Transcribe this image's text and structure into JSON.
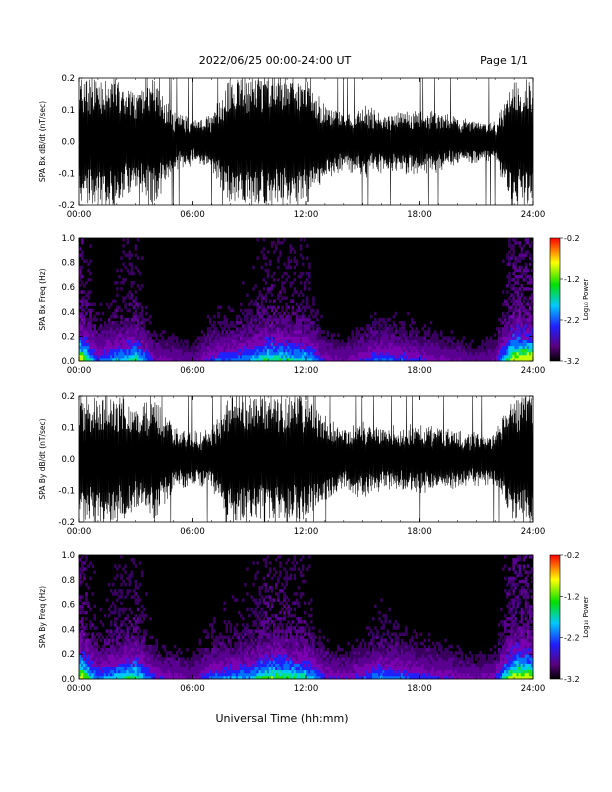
{
  "header": {
    "title": "2022/06/25  00:00-24:00 UT",
    "page": "Page 1/1"
  },
  "footer": {
    "xlabel": "Universal Time (hh:mm)"
  },
  "colors": {
    "trace": "#000000",
    "background": "#ffffff",
    "spectrogram_background": "#000000"
  },
  "chart_data": [
    {
      "type": "line",
      "ylabel": "SPA Bx dB/dt (nT/sec)",
      "xlim": [
        0,
        24
      ],
      "ylim": [
        -0.2,
        0.2
      ],
      "x_ticks": [
        "00:00",
        "06:00",
        "12:00",
        "18:00",
        "24:00"
      ],
      "y_ticks": [
        "-0.2",
        "-0.1",
        "0.0",
        "0.1",
        "0.2"
      ],
      "envelope": {
        "x": [
          0,
          1,
          2,
          3,
          4,
          5,
          6,
          7,
          8,
          9,
          10,
          11,
          12,
          13,
          14,
          15,
          16,
          17,
          18,
          19,
          20,
          21,
          22,
          23,
          24
        ],
        "amplitude": [
          0.2,
          0.2,
          0.2,
          0.15,
          0.2,
          0.09,
          0.07,
          0.08,
          0.2,
          0.2,
          0.2,
          0.2,
          0.2,
          0.12,
          0.09,
          0.11,
          0.09,
          0.1,
          0.1,
          0.09,
          0.07,
          0.07,
          0.06,
          0.2,
          0.2
        ]
      }
    },
    {
      "type": "heatmap",
      "ylabel": "SPA Bx Freq (Hz)",
      "xlim": [
        0,
        24
      ],
      "ylim": [
        0.0,
        1.0
      ],
      "x_ticks": [
        "00:00",
        "06:00",
        "12:00",
        "18:00",
        "24:00"
      ],
      "y_ticks": [
        "0.0",
        "0.2",
        "0.4",
        "0.6",
        "0.8",
        "1.0"
      ],
      "colorbar": {
        "label": "Log₁₀ Power",
        "range": [
          -3.2,
          -0.2
        ],
        "ticks": [
          "-0.2",
          "-1.2",
          "-2.2",
          "-3.2"
        ]
      },
      "activity": {
        "x": [
          0,
          1,
          2,
          3,
          4,
          5,
          6,
          7,
          8,
          9,
          10,
          11,
          12,
          13,
          14,
          15,
          16,
          17,
          18,
          19,
          20,
          21,
          22,
          23,
          24
        ],
        "level": [
          0.9,
          0.4,
          0.55,
          0.65,
          0.3,
          0.25,
          0.2,
          0.4,
          0.45,
          0.5,
          0.7,
          0.65,
          0.6,
          0.3,
          0.25,
          0.35,
          0.45,
          0.4,
          0.35,
          0.3,
          0.25,
          0.2,
          0.25,
          0.95,
          0.9
        ]
      }
    },
    {
      "type": "line",
      "ylabel": "SPA By dB/dt (nT/sec)",
      "xlim": [
        0,
        24
      ],
      "ylim": [
        -0.2,
        0.2
      ],
      "x_ticks": [
        "00:00",
        "06:00",
        "12:00",
        "18:00",
        "24:00"
      ],
      "y_ticks": [
        "-0.2",
        "-0.1",
        "0.0",
        "0.1",
        "0.2"
      ],
      "envelope": {
        "x": [
          0,
          1,
          2,
          3,
          4,
          5,
          6,
          7,
          8,
          9,
          10,
          11,
          12,
          13,
          14,
          15,
          16,
          17,
          18,
          19,
          20,
          21,
          22,
          23,
          24
        ],
        "amplitude": [
          0.2,
          0.2,
          0.2,
          0.16,
          0.2,
          0.1,
          0.08,
          0.09,
          0.2,
          0.2,
          0.2,
          0.2,
          0.2,
          0.13,
          0.1,
          0.12,
          0.1,
          0.1,
          0.11,
          0.1,
          0.09,
          0.08,
          0.08,
          0.2,
          0.2
        ]
      }
    },
    {
      "type": "heatmap",
      "ylabel": "SPA By Freq (Hz)",
      "xlim": [
        0,
        24
      ],
      "ylim": [
        0.0,
        1.0
      ],
      "x_ticks": [
        "00:00",
        "06:00",
        "12:00",
        "18:00",
        "24:00"
      ],
      "y_ticks": [
        "0.0",
        "0.2",
        "0.4",
        "0.6",
        "0.8",
        "1.0"
      ],
      "colorbar": {
        "label": "Log₁₀ Power",
        "range": [
          -3.2,
          -0.2
        ],
        "ticks": [
          "-0.2",
          "-1.2",
          "-2.2",
          "-3.2"
        ]
      },
      "activity": {
        "x": [
          0,
          1,
          2,
          3,
          4,
          5,
          6,
          7,
          8,
          9,
          10,
          11,
          12,
          13,
          14,
          15,
          16,
          17,
          18,
          19,
          20,
          21,
          22,
          23,
          24
        ],
        "level": [
          0.95,
          0.45,
          0.6,
          0.7,
          0.35,
          0.3,
          0.25,
          0.45,
          0.5,
          0.55,
          0.75,
          0.7,
          0.65,
          0.35,
          0.3,
          0.4,
          0.5,
          0.45,
          0.4,
          0.35,
          0.3,
          0.25,
          0.3,
          0.95,
          0.9
        ]
      }
    }
  ]
}
